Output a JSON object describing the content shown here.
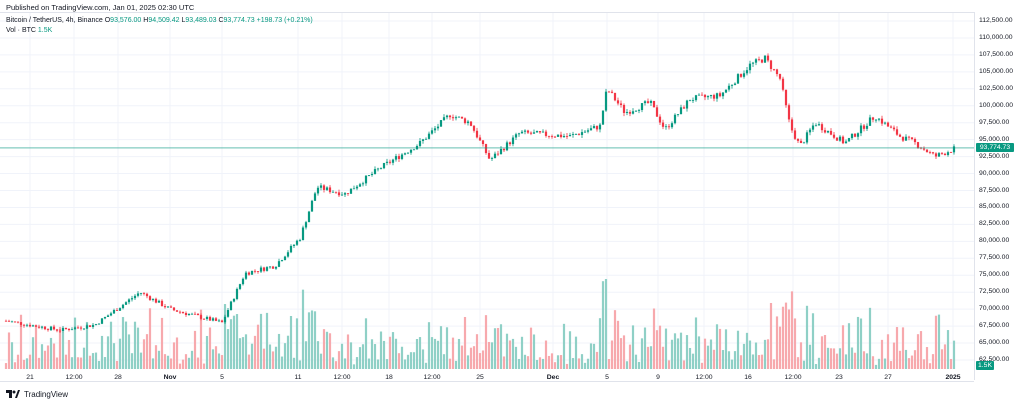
{
  "published": "Published on TradingView.com, Jan 01, 2025 02:30 UTC",
  "legend": {
    "symbol": "Bitcoin / TetherUS, 4h, Binance",
    "o_label": "O",
    "o": "93,576.00",
    "h_label": "H",
    "h": "94,509.42",
    "l_label": "L",
    "l": "93,489.03",
    "c_label": "C",
    "c": "93,774.73",
    "change": "+198.73 (+0.21%)"
  },
  "volume_legend": {
    "label": "Vol · BTC",
    "value": "1.5K"
  },
  "price_tag": "93,774.73",
  "volume_tag": "1.5K",
  "footer_logo": "TradingView",
  "colors": {
    "up": "#089981",
    "down": "#f23645",
    "vol_up": "#8fd0c6",
    "vol_down": "#f7a9ad"
  },
  "y_ticks": [
    "112,500.00",
    "110,000.00",
    "107,500.00",
    "105,000.00",
    "102,500.00",
    "100,000.00",
    "97,500.00",
    "95,000.00",
    "92,500.00",
    "90,000.00",
    "87,500.00",
    "85,000.00",
    "82,500.00",
    "80,000.00",
    "77,500.00",
    "75,000.00",
    "72,500.00",
    "70,000.00",
    "67,500.00",
    "65,000.00",
    "62,500.00"
  ],
  "x_ticks": [
    "21",
    "12:00",
    "28",
    "Nov",
    "5",
    "11",
    "12:00",
    "18",
    "12:00",
    "25",
    "Dec",
    "5",
    "9",
    "12:00",
    "16",
    "12:00",
    "23",
    "27",
    "2025"
  ],
  "chart_data": {
    "type": "candlestick",
    "y_axis": {
      "min": 62500,
      "max": 112500,
      "step": 2500
    },
    "current_price": 93774.73,
    "anchors": [
      {
        "x": "Oct 19",
        "price": 68300
      },
      {
        "x": "Oct 23",
        "price": 66900
      },
      {
        "x": "Oct 26",
        "price": 67700
      },
      {
        "x": "Oct 29",
        "price": 72500
      },
      {
        "x": "Oct 31",
        "price": 70000
      },
      {
        "x": "Nov 4",
        "price": 68000
      },
      {
        "x": "Nov 6",
        "price": 75300
      },
      {
        "x": "Nov 8",
        "price": 76400
      },
      {
        "x": "Nov 10",
        "price": 80500
      },
      {
        "x": "Nov 12",
        "price": 88000
      },
      {
        "x": "Nov 14",
        "price": 87000
      },
      {
        "x": "Nov 17",
        "price": 90800
      },
      {
        "x": "Nov 20",
        "price": 94500
      },
      {
        "x": "Nov 22",
        "price": 98700
      },
      {
        "x": "Nov 24",
        "price": 97500
      },
      {
        "x": "Nov 26",
        "price": 92000
      },
      {
        "x": "Nov 28",
        "price": 96000
      },
      {
        "x": "Dec 2",
        "price": 95500
      },
      {
        "x": "Dec 4",
        "price": 97000
      },
      {
        "x": "Dec 5",
        "price": 102500
      },
      {
        "x": "Dec 7",
        "price": 99000
      },
      {
        "x": "Dec 8",
        "price": 100500
      },
      {
        "x": "Dec 10",
        "price": 96500
      },
      {
        "x": "Dec 12",
        "price": 101000
      },
      {
        "x": "Dec 14",
        "price": 101500
      },
      {
        "x": "Dec 16",
        "price": 106000
      },
      {
        "x": "Dec 17",
        "price": 107000
      },
      {
        "x": "Dec 18",
        "price": 104000
      },
      {
        "x": "Dec 19",
        "price": 97000
      },
      {
        "x": "Dec 20",
        "price": 94000
      },
      {
        "x": "Dec 21",
        "price": 97500
      },
      {
        "x": "Dec 23",
        "price": 94500
      },
      {
        "x": "Dec 24",
        "price": 98500
      },
      {
        "x": "Dec 26",
        "price": 95500
      },
      {
        "x": "Dec 28",
        "price": 94500
      },
      {
        "x": "Dec 30",
        "price": 92500
      },
      {
        "x": "Dec 31",
        "price": 93700
      }
    ]
  }
}
